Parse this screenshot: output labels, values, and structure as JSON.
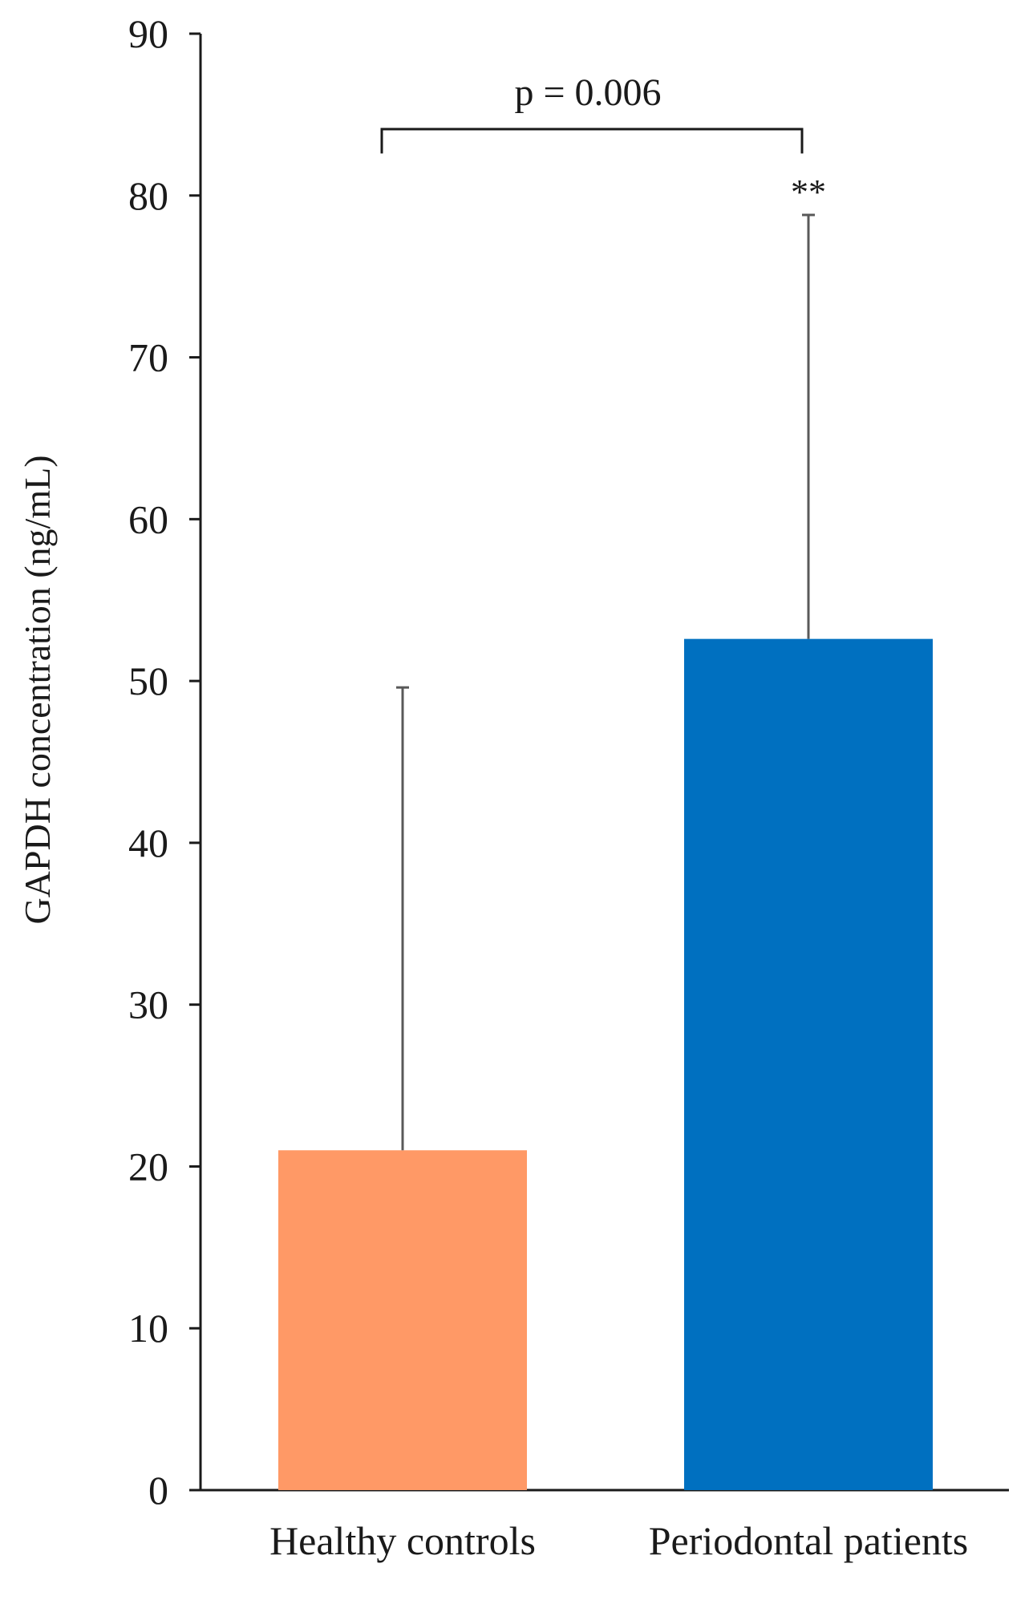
{
  "chart_data": {
    "type": "bar",
    "title": "",
    "xlabel": "",
    "ylabel": "GAPDH concentration (ng/mL)",
    "ylim": [
      0,
      90
    ],
    "yticks": [
      0,
      10,
      20,
      30,
      40,
      50,
      60,
      70,
      80,
      90
    ],
    "grid": false,
    "categories": [
      "Healthy controls",
      "Periodontal patients"
    ],
    "values": [
      21.0,
      52.6
    ],
    "error_upper": [
      28.6,
      26.2
    ],
    "colors": [
      "#FF9966",
      "#0070C0"
    ],
    "annotations": {
      "comparison": "p = 0.006",
      "significance": "**"
    }
  }
}
